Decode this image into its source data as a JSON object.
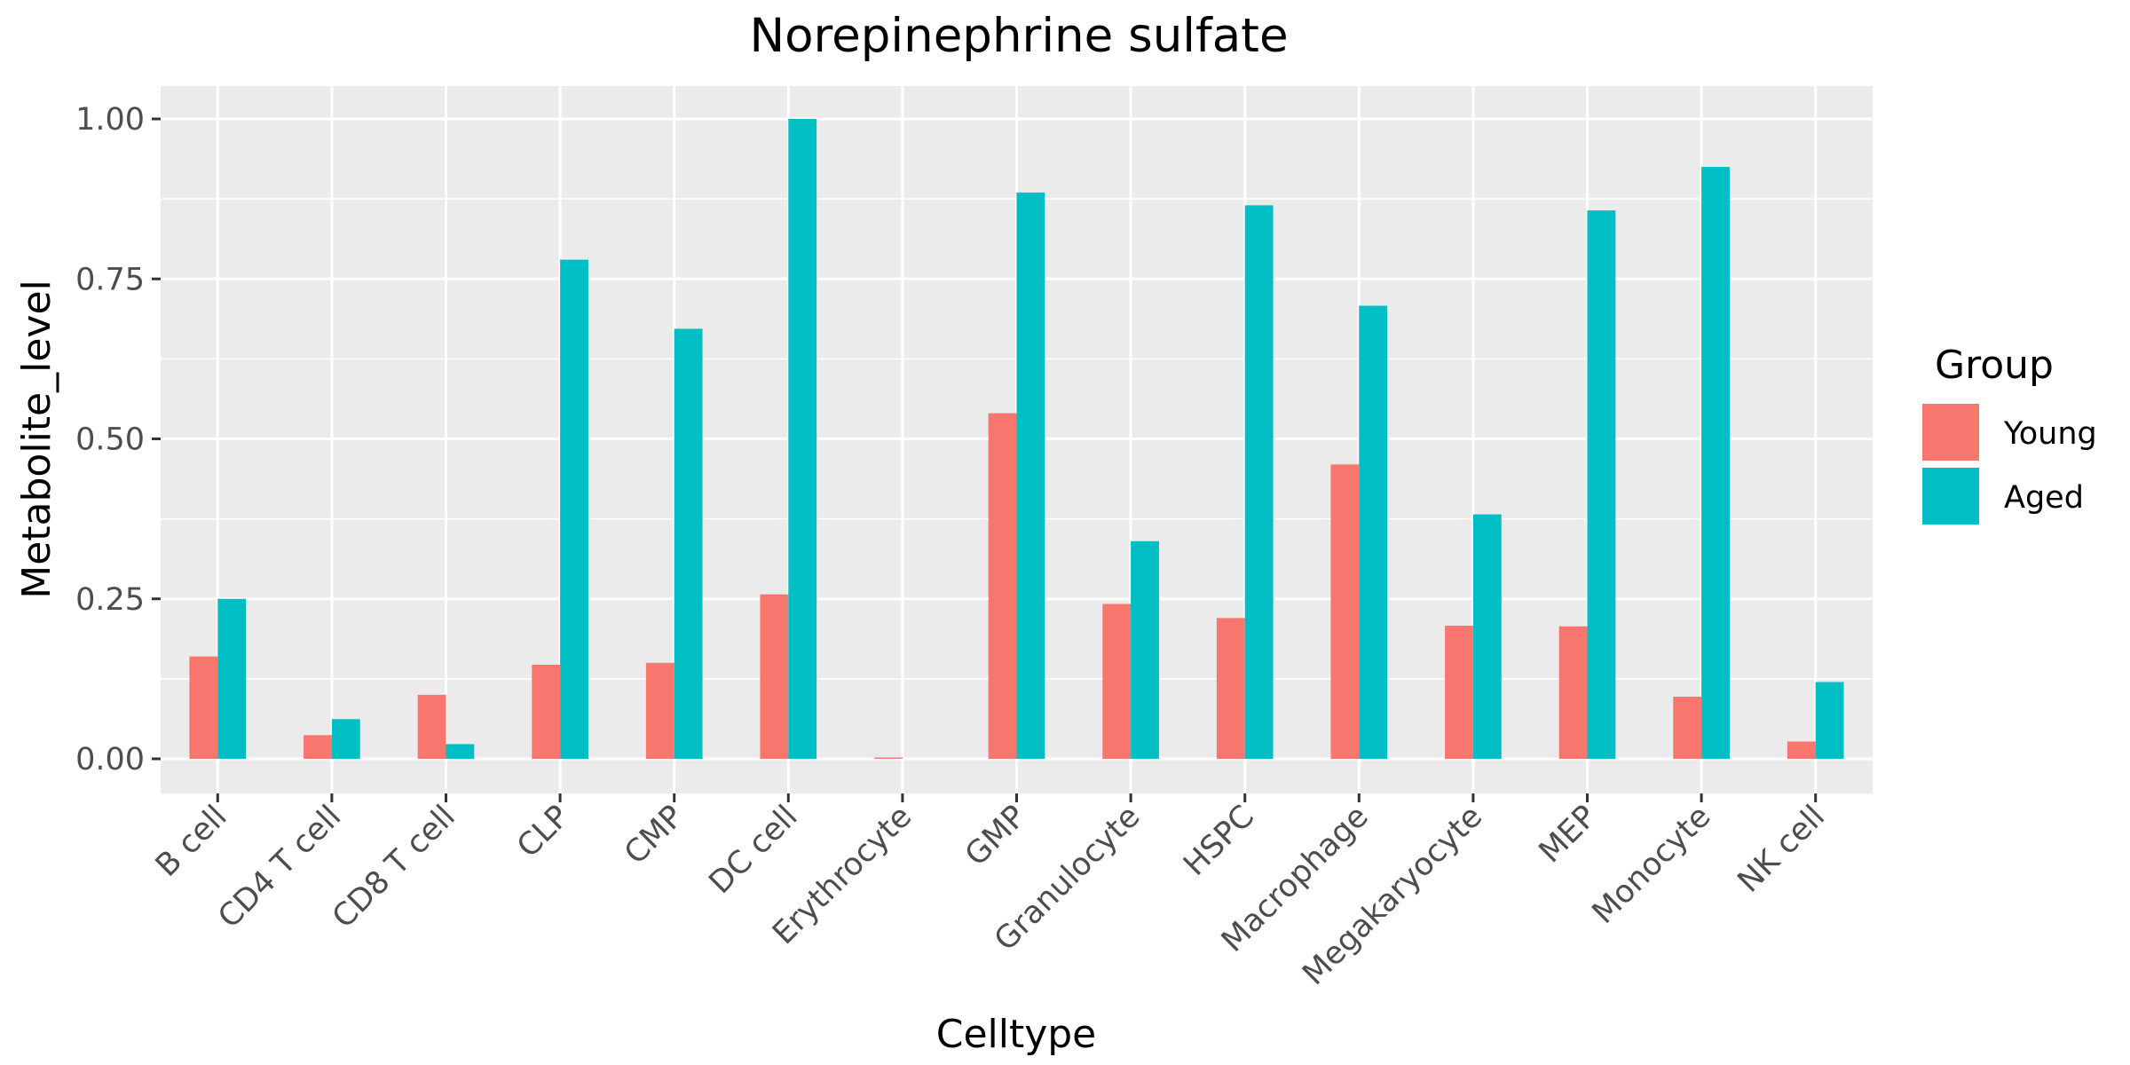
{
  "chart_data": {
    "type": "bar",
    "title": "Norepinephrine sulfate",
    "xlabel": "Celltype",
    "ylabel": "Metabolite_level",
    "ylim": [
      -0.05,
      1.05
    ],
    "yticks": [
      0.0,
      0.25,
      0.5,
      0.75,
      1.0
    ],
    "ytick_labels": [
      "0.00",
      "0.25",
      "0.50",
      "0.75",
      "1.00"
    ],
    "grid": true,
    "legend_position": "right",
    "legend_title": "Group",
    "categories": [
      "B cell",
      "CD4 T cell",
      "CD8 T cell",
      "CLP",
      "CMP",
      "DC cell",
      "Erythrocyte",
      "GMP",
      "Granulocyte",
      "HSPC",
      "Macrophage",
      "Megakaryocyte",
      "MEP",
      "Monocyte",
      "NK cell"
    ],
    "series": [
      {
        "name": "Young",
        "color": "#F8766D",
        "values": [
          0.16,
          0.037,
          0.1,
          0.147,
          0.15,
          0.257,
          0.002,
          0.54,
          0.242,
          0.22,
          0.46,
          0.208,
          0.207,
          0.097,
          0.027
        ]
      },
      {
        "name": "Aged",
        "color": "#00BFC4",
        "values": [
          0.25,
          0.062,
          0.023,
          0.78,
          0.672,
          1.0,
          0.0,
          0.885,
          0.34,
          0.865,
          0.708,
          0.382,
          0.857,
          0.925,
          0.12
        ]
      }
    ]
  }
}
